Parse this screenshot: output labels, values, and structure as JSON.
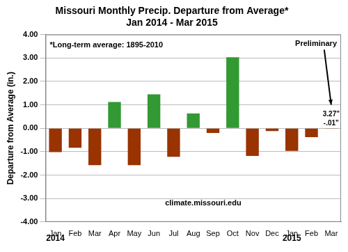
{
  "chart_data": {
    "type": "bar",
    "title": "Missouri Monthly Precip. Departure from Average*",
    "subtitle": "Jan 2014 - Mar 2015",
    "y_label": "Departure from Average (in.)",
    "categories": [
      "Jan",
      "Feb",
      "Mar",
      "Apr",
      "May",
      "Jun",
      "Jul",
      "Aug",
      "Sep",
      "Oct",
      "Nov",
      "Dec",
      "Jan",
      "Feb",
      "Mar"
    ],
    "values": [
      -1.02,
      -0.83,
      -1.58,
      1.12,
      -1.58,
      1.45,
      -1.22,
      0.63,
      -0.2,
      3.03,
      -1.18,
      -0.12,
      -0.97,
      -0.38,
      -0.01
    ],
    "colors": [
      "#993300",
      "#993300",
      "#993300",
      "#339933",
      "#993300",
      "#339933",
      "#993300",
      "#339933",
      "#993300",
      "#339933",
      "#993300",
      "#993300",
      "#993300",
      "#993300",
      "#993300"
    ],
    "year_labels": [
      {
        "text": "2014",
        "at": 0
      },
      {
        "text": "2015",
        "at": 12
      }
    ],
    "ylim": [
      -4,
      4
    ],
    "yticks": [
      {
        "value": -4,
        "label": "-4.00"
      },
      {
        "value": -3,
        "label": "-3.00"
      },
      {
        "value": -2,
        "label": "-2.00"
      },
      {
        "value": -1,
        "label": "-1.00"
      },
      {
        "value": 0,
        "label": "0.00"
      },
      {
        "value": 1,
        "label": "1.00"
      },
      {
        "value": 2,
        "label": "2.00"
      },
      {
        "value": 3,
        "label": "3.00"
      },
      {
        "value": 4,
        "label": "4.00"
      }
    ],
    "grid": true,
    "annotations": {
      "average_note": "*Long-term average: 1895-2010",
      "preliminary": "Preliminary",
      "preliminary_values": [
        "3.27\"",
        "-.01\""
      ],
      "source": "climate.missouri.edu"
    }
  }
}
